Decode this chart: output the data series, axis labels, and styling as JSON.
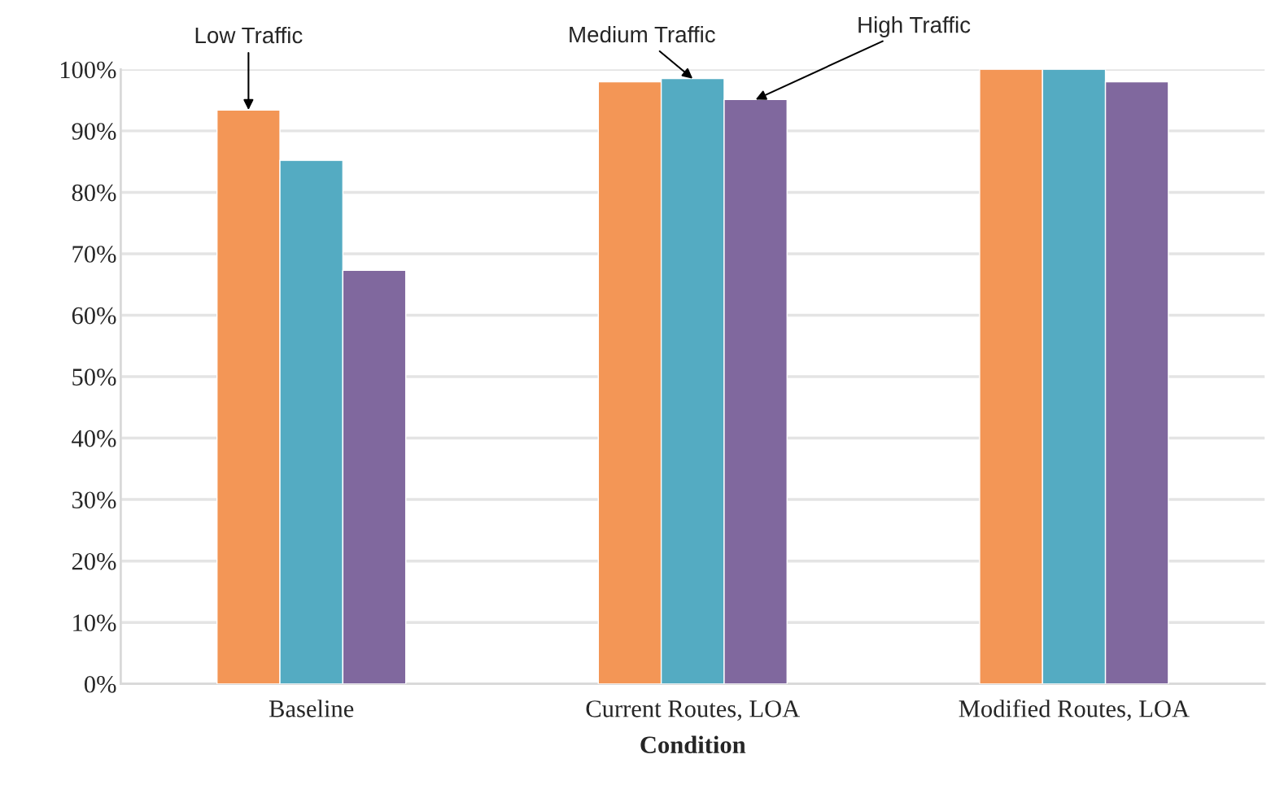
{
  "chart_data": {
    "type": "bar",
    "xlabel": "Condition",
    "categories": [
      "Baseline",
      "Current Routes, LOA",
      "Modified Routes, LOA"
    ],
    "series": [
      {
        "name": "Low Traffic",
        "color": "#f39656",
        "values": [
          93.4,
          98,
          100
        ]
      },
      {
        "name": "Medium Traffic",
        "color": "#54abc2",
        "values": [
          85.2,
          98.5,
          100
        ]
      },
      {
        "name": "High Traffic",
        "color": "#80689e",
        "values": [
          67.3,
          95.1,
          98
        ]
      }
    ],
    "ylim": [
      0,
      100
    ],
    "yticks": [
      {
        "value": 0,
        "label": "0%"
      },
      {
        "value": 10,
        "label": "10%"
      },
      {
        "value": 20,
        "label": "20%"
      },
      {
        "value": 30,
        "label": "30%"
      },
      {
        "value": 40,
        "label": "40%"
      },
      {
        "value": 50,
        "label": "50%"
      },
      {
        "value": 60,
        "label": "60%"
      },
      {
        "value": 70,
        "label": "70%"
      },
      {
        "value": 80,
        "label": "80%"
      },
      {
        "value": 90,
        "label": "90%"
      },
      {
        "value": 100,
        "label": "100%"
      }
    ],
    "grid": "y",
    "legend": false
  }
}
